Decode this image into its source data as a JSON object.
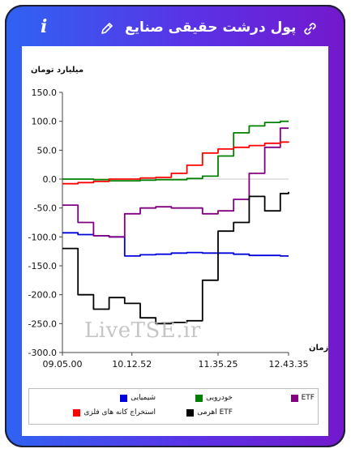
{
  "header": {
    "title": "پول درشت حقیقی صنایع",
    "info_label": "i"
  },
  "icons": {
    "info": "info-icon",
    "edit": "pencil-icon",
    "share": "link-icon"
  },
  "colors": {
    "header_start": "#2f63f2",
    "header_end": "#7418cc",
    "chemicals": "#0000dd",
    "automotive": "#008000",
    "etf": "#800080",
    "metal_extraction": "#ff0000",
    "leveraged_etf": "#000000"
  },
  "watermark": "LiveTSE.ir",
  "chart_data": {
    "type": "line",
    "unit": "میلیارد تومان",
    "xlabel": "زمان",
    "x_ticks": [
      "09.05.00",
      "10.12.52",
      "11.35.25",
      "12.43.35"
    ],
    "x_domain": [
      "09:05:00",
      "12:43:35"
    ],
    "ylim": [
      -300,
      150
    ],
    "y_ticks": [
      "150.0",
      "100.0",
      "50.0",
      "0.0",
      "-50.0",
      "-100.0",
      "-150.0",
      "-200.0",
      "-250.0",
      "-300.0"
    ],
    "grid": "zero line only",
    "legend_position": "bottom",
    "x": [
      "09:05",
      "09:20",
      "09:35",
      "09:50",
      "10:05",
      "10:20",
      "10:35",
      "10:50",
      "11:05",
      "11:20",
      "11:35",
      "11:50",
      "12:05",
      "12:20",
      "12:35",
      "12:43"
    ],
    "series": [
      {
        "name": "شیمیایی",
        "color": "#0000dd",
        "values": [
          -93,
          -96,
          -98,
          -100,
          -133,
          -131,
          -130,
          -128,
          -127,
          -128,
          -128,
          -130,
          -132,
          -132,
          -133,
          -133
        ]
      },
      {
        "name": "خودرویی",
        "color": "#008000",
        "values": [
          0,
          0,
          -1,
          -3,
          -3,
          -2,
          -1,
          -1,
          1,
          5,
          40,
          80,
          92,
          98,
          100,
          100
        ]
      },
      {
        "name": "ETF",
        "color": "#800080",
        "values": [
          -45,
          -75,
          -98,
          -100,
          -60,
          -50,
          -48,
          -50,
          -50,
          -60,
          -55,
          -35,
          10,
          55,
          88,
          88
        ]
      },
      {
        "name": "استخراج کانه های فلزی",
        "color": "#ff0000",
        "values": [
          -8,
          -6,
          -4,
          0,
          0,
          2,
          3,
          10,
          24,
          45,
          52,
          55,
          58,
          62,
          64,
          65
        ]
      },
      {
        "name": "ETF اهرمی",
        "color": "#000000",
        "values": [
          -120,
          -200,
          -225,
          -205,
          -215,
          -240,
          -250,
          -248,
          -245,
          -175,
          -90,
          -75,
          -30,
          -55,
          -25,
          -22
        ]
      }
    ]
  }
}
